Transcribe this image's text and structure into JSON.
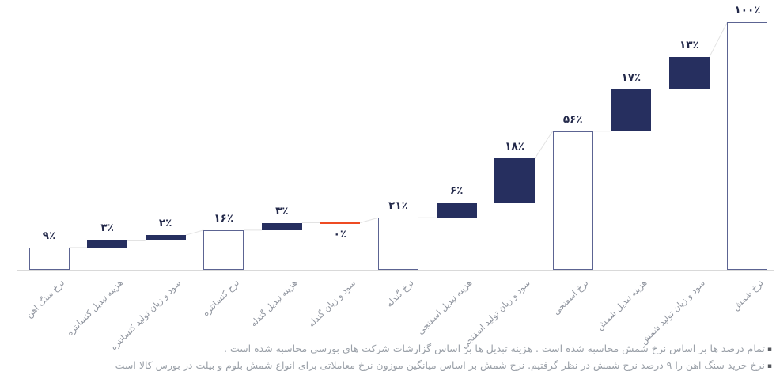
{
  "chart_data": {
    "type": "waterfall",
    "title": "",
    "unit": "%",
    "ylim": [
      0,
      100
    ],
    "grid": false,
    "legend": false,
    "bars": [
      {
        "label": "نرخ سنگ اهن",
        "value": 9,
        "display": "۹٪",
        "start": 0,
        "end": 9,
        "kind": "total"
      },
      {
        "label": "هزینه تبدیل کنسانتره",
        "value": 3,
        "display": "۳٪",
        "start": 9,
        "end": 12,
        "kind": "delta"
      },
      {
        "label": "سود و زیان تولید کنسانتره",
        "value": 2,
        "display": "۲٪",
        "start": 12,
        "end": 14,
        "kind": "delta"
      },
      {
        "label": "نرخ کنسانتره",
        "value": 16,
        "display": "۱۶٪",
        "start": 0,
        "end": 16,
        "kind": "total"
      },
      {
        "label": "هزینه تبدیل گندله",
        "value": 3,
        "display": "۳٪",
        "start": 16,
        "end": 19,
        "kind": "delta"
      },
      {
        "label": "سود و زیان گندله",
        "value": 0,
        "display": "۰٪",
        "start": 19,
        "end": 19,
        "kind": "zero"
      },
      {
        "label": "نرخ گندله",
        "value": 21,
        "display": "۲۱٪",
        "start": 0,
        "end": 21,
        "kind": "total"
      },
      {
        "label": "هزینه تبدیل اسفنجی",
        "value": 6,
        "display": "۶٪",
        "start": 21,
        "end": 27,
        "kind": "delta"
      },
      {
        "label": "سود و زیان تولید اسفنجی",
        "value": 18,
        "display": "۱۸٪",
        "start": 27,
        "end": 45,
        "kind": "delta"
      },
      {
        "label": "نرخ اسفنجی",
        "value": 56,
        "display": "۵۶٪",
        "start": 0,
        "end": 56,
        "kind": "total"
      },
      {
        "label": "هزینه تبدیل شمش",
        "value": 17,
        "display": "۱۷٪",
        "start": 56,
        "end": 73,
        "kind": "delta"
      },
      {
        "label": "سود و زیان تولید شمش",
        "value": 13,
        "display": "۱۳٪",
        "start": 73,
        "end": 86,
        "kind": "delta"
      },
      {
        "label": "نرخ شمش",
        "value": 100,
        "display": "۱۰۰٪",
        "start": 0,
        "end": 100,
        "kind": "total"
      }
    ],
    "colors": {
      "delta_fill": "#262f5f",
      "total_border": "#5c6492",
      "zero_line": "#ee4b23",
      "connector": "#e3e3e3",
      "axis_line": "#d9d9d9",
      "value_text": "#23294a",
      "label_text": "#8f949e",
      "footnote_text": "#9aa0a8",
      "bullet": "#55585e"
    }
  },
  "footnotes": {
    "bullet": "▪",
    "line1": "تمام درصد ها بر اساس نرخ شمش محاسبه شده است . هزینه تبدیل ها بر اساس گزارشات شرکت های بورسی محاسبه شده است .",
    "line2": "نرخ خرید سنگ اهن را ۹ درصد نرخ شمش در نظر گرفتیم. نرخ شمش بر اساس میانگین موزون نرخ معاملاتی برای انواع شمش بلوم و بیلت در بورس کالا است"
  }
}
